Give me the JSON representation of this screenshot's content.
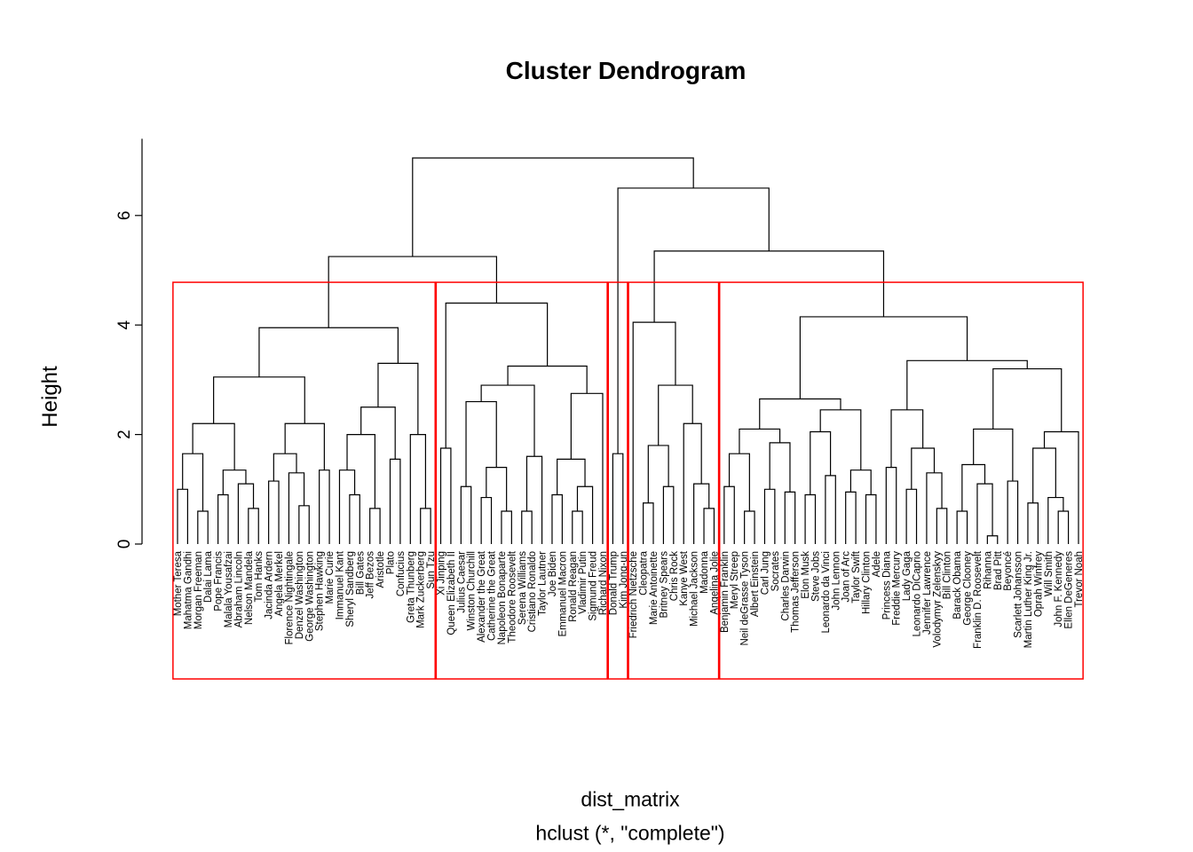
{
  "chart_data": {
    "type": "dendrogram",
    "title": "Cluster Dendrogram",
    "ylabel": "Height",
    "xlabel": "dist_matrix",
    "call_label": "hclust (*, \"complete\")",
    "yticks": [
      0,
      2,
      4,
      6
    ],
    "ylim": [
      0,
      7.4
    ],
    "grid": false,
    "line_color": "#000000",
    "box_color": "#FF0000",
    "cut_height": 4.78,
    "cluster_count": 5,
    "clusters": [
      [
        0,
        25
      ],
      [
        26,
        42
      ],
      [
        43,
        44
      ],
      [
        45,
        53
      ],
      [
        54,
        89
      ]
    ],
    "leaves": [
      "Mother Teresa",
      "Mahatma Gandhi",
      "Morgan Freeman",
      "Dalai Lama",
      "Pope Francis",
      "Malala Yousafzai",
      "Abraham Lincoln",
      "Nelson Mandela",
      "Tom Hanks",
      "Jacinda Ardern",
      "Angela Merkel",
      "Florence Nightingale",
      "Denzel Washington",
      "George Washington",
      "Stephen Hawking",
      "Marie Curie",
      "Immanuel Kant",
      "Sheryl Sandberg",
      "Bill Gates",
      "Jeff Bezos",
      "Aristotle",
      "Plato",
      "Confucius",
      "Greta Thunberg",
      "Mark Zuckerberg",
      "Sun Tzu",
      "Xi Jinping",
      "Queen Elizabeth II",
      "Julius Caesar",
      "Winston Churchill",
      "Alexander the Great",
      "Catherine the Great",
      "Napoleon Bonaparte",
      "Theodore Roosevelt",
      "Serena Williams",
      "Cristiano Ronaldo",
      "Taylor Lautner",
      "Joe Biden",
      "Emmanuel Macron",
      "Ronald Reagan",
      "Vladimir Putin",
      "Sigmund Freud",
      "Richard Nixon",
      "Donald Trump",
      "Kim Jong-un",
      "Friedrich Nietzsche",
      "Cleopatra",
      "Marie Antoinette",
      "Britney Spears",
      "Chris Rock",
      "Kanye West",
      "Michael Jackson",
      "Madonna",
      "Angelina Jolie",
      "Benjamin Franklin",
      "Meryl Streep",
      "Neil deGrasse Tyson",
      "Albert Einstein",
      "Carl Jung",
      "Socrates",
      "Charles Darwin",
      "Thomas Jefferson",
      "Elon Musk",
      "Steve Jobs",
      "Leonardo da Vinci",
      "John Lennon",
      "Joan of Arc",
      "Taylor Swift",
      "Hillary Clinton",
      "Adele",
      "Princess Diana",
      "Freddie Mercury",
      "Lady Gaga",
      "Leonardo DiCaprio",
      "Jennifer Lawrence",
      "Volodymyr Zelenskyy",
      "Bill Clinton",
      "Barack Obama",
      "George Clooney",
      "Franklin D. Roosevelt",
      "Rihanna",
      "Brad Pitt",
      "Beyoncé",
      "Scarlett Johansson",
      "Martin Luther King Jr.",
      "Oprah Winfrey",
      "Will Smith",
      "John F. Kennedy",
      "Ellen DeGeneres",
      "Trevor Noah"
    ],
    "tree": [
      7.05,
      [
        5.25,
        [
          3.95,
          [
            3.05,
            [
              2.2,
              [
                1.65,
                [
                  1.0,
                  0,
                  1
                ],
                [
                  0.6,
                  2,
                  3
                ]
              ],
              [
                1.35,
                [
                  0.9,
                  4,
                  5
                ],
                [
                  1.1,
                  6,
                  [
                    0.65,
                    7,
                    8
                  ]
                ]
              ]
            ],
            [
              2.2,
              [
                1.65,
                [
                  1.15,
                  9,
                  10
                ],
                [
                  1.3,
                  11,
                  [
                    0.7,
                    12,
                    13
                  ]
                ]
              ],
              [
                1.35,
                14,
                15
              ]
            ]
          ],
          [
            3.3,
            [
              2.5,
              [
                2.0,
                [
                  1.35,
                  16,
                  [
                    0.9,
                    17,
                    18
                  ]
                ],
                [
                  0.65,
                  19,
                  20
                ]
              ],
              [
                1.55,
                21,
                22
              ]
            ],
            [
              2.0,
              23,
              [
                0.65,
                24,
                25
              ]
            ]
          ]
        ],
        [
          4.4,
          [
            1.75,
            26,
            27
          ],
          [
            3.25,
            [
              2.9,
              [
                2.6,
                [
                  1.05,
                  28,
                  29
                ],
                [
                  1.4,
                  [
                    0.85,
                    30,
                    31
                  ],
                  [
                    0.6,
                    32,
                    33
                  ]
                ]
              ],
              [
                1.6,
                [
                  0.6,
                  34,
                  35
                ],
                36
              ]
            ],
            [
              2.75,
              [
                1.55,
                [
                  0.9,
                  37,
                  38
                ],
                [
                  1.05,
                  [
                    0.6,
                    39,
                    40
                  ],
                  41
                ]
              ],
              42
            ]
          ]
        ]
      ],
      [
        6.5,
        [
          1.65,
          43,
          44
        ],
        [
          5.35,
          [
            4.05,
            45,
            [
              2.9,
              [
                1.8,
                [
                  0.75,
                  46,
                  47
                ],
                [
                  1.05,
                  48,
                  49
                ]
              ],
              [
                2.2,
                50,
                [
                  1.1,
                  51,
                  [
                    0.65,
                    52,
                    53
                  ]
                ]
              ]
            ]
          ],
          [
            4.15,
            [
              2.65,
              [
                2.1,
                [
                  1.65,
                  [
                    1.05,
                    54,
                    55
                  ],
                  [
                    0.6,
                    56,
                    57
                  ]
                ],
                [
                  1.85,
                  [
                    1.0,
                    58,
                    59
                  ],
                  [
                    0.95,
                    60,
                    61
                  ]
                ]
              ],
              [
                2.45,
                [
                  2.05,
                  [
                    0.9,
                    62,
                    63
                  ],
                  [
                    1.25,
                    64,
                    65
                  ]
                ],
                [
                  1.35,
                  [
                    0.95,
                    66,
                    67
                  ],
                  [
                    0.9,
                    68,
                    69
                  ]
                ]
              ]
            ],
            [
              3.35,
              [
                2.45,
                [
                  1.4,
                  70,
                  71
                ],
                [
                  1.75,
                  [
                    1.0,
                    72,
                    73
                  ],
                  [
                    1.3,
                    74,
                    [
                      0.65,
                      75,
                      76
                    ]
                  ]
                ]
              ],
              [
                3.2,
                [
                  2.1,
                  [
                    1.45,
                    [
                      0.6,
                      77,
                      78
                    ],
                    [
                      1.1,
                      79,
                      [
                        0.15,
                        80,
                        81
                      ]
                    ]
                  ],
                  [
                    1.15,
                    82,
                    83
                  ]
                ],
                [
                  2.05,
                  [
                    1.75,
                    [
                      0.75,
                      84,
                      85
                    ],
                    [
                      0.85,
                      86,
                      [
                        0.6,
                        87,
                        88
                      ]
                    ]
                  ],
                  89
                ]
              ]
            ]
          ]
        ]
      ]
    ]
  }
}
